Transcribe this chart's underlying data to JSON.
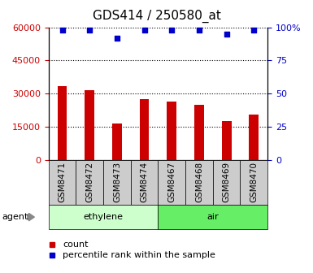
{
  "title": "GDS414 / 250580_at",
  "samples": [
    "GSM8471",
    "GSM8472",
    "GSM8473",
    "GSM8474",
    "GSM8467",
    "GSM8468",
    "GSM8469",
    "GSM8470"
  ],
  "counts": [
    33500,
    31500,
    16500,
    27500,
    26500,
    25000,
    17500,
    20500
  ],
  "percentile_ranks": [
    98,
    98,
    92,
    98,
    98,
    98,
    95,
    98
  ],
  "bar_color": "#cc0000",
  "dot_color": "#0000cc",
  "ylim_left": [
    0,
    60000
  ],
  "ylim_right": [
    0,
    100
  ],
  "yticks_left": [
    0,
    15000,
    30000,
    45000,
    60000
  ],
  "yticks_right": [
    0,
    25,
    50,
    75,
    100
  ],
  "groups": [
    {
      "label": "ethylene",
      "indices": [
        0,
        1,
        2,
        3
      ],
      "color": "#ccffcc"
    },
    {
      "label": "air",
      "indices": [
        4,
        5,
        6,
        7
      ],
      "color": "#66ee66"
    }
  ],
  "agent_label": "agent",
  "legend_count": "count",
  "legend_percentile": "percentile rank within the sample",
  "bg_color": "#ffffff",
  "tick_label_color_left": "#cc0000",
  "tick_label_color_right": "#0000cc",
  "grid_style": "dotted",
  "bar_width": 0.35,
  "sample_box_color": "#cccccc",
  "title_fontsize": 11,
  "label_fontsize": 7.5,
  "tick_fontsize": 8,
  "legend_fontsize": 8
}
